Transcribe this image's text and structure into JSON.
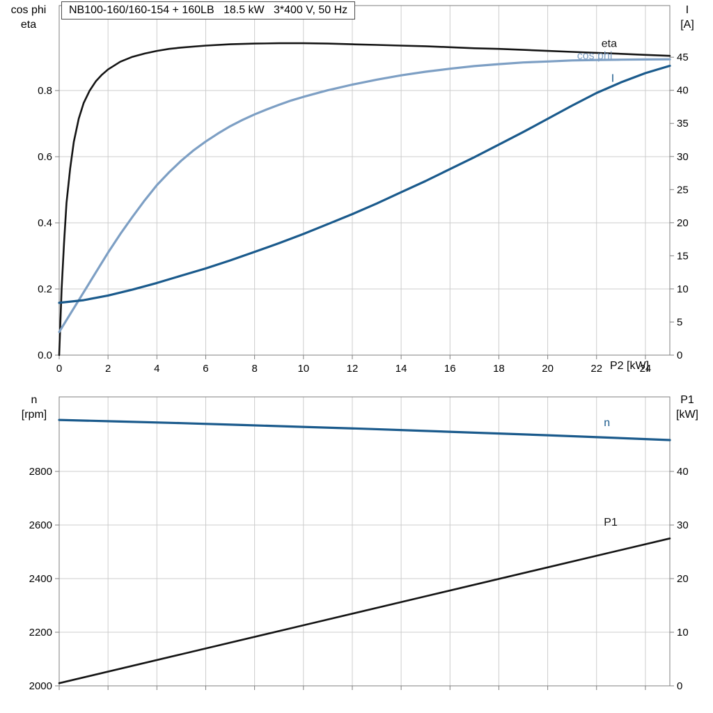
{
  "style": {
    "black": "#141414",
    "dark_blue": "#1a5a8c",
    "light_blue": "#7d9fc4",
    "grid": "#cccccc",
    "frame": "#7f7f7f",
    "text": "#000000"
  },
  "chart_data": [
    {
      "type": "line",
      "title": "NB100-160/160-154 + 160LB   18.5 kW   3*400 V, 50 Hz",
      "x": {
        "label": "P2 [kW]",
        "range": [
          0,
          25
        ],
        "ticks": [
          0,
          2,
          4,
          6,
          8,
          10,
          12,
          14,
          16,
          18,
          20,
          22,
          24
        ],
        "show_tick_labels": true
      },
      "left_axis": {
        "label": [
          "cos phi",
          "eta"
        ],
        "range": [
          0,
          1.057
        ],
        "ticks": [
          [
            "0.0",
            0
          ],
          [
            "0.2",
            0.2
          ],
          [
            "0.4",
            0.4
          ],
          [
            "0.6",
            0.6
          ],
          [
            "0.8",
            0.8
          ]
        ]
      },
      "right_axis": {
        "label": [
          "I",
          "[A]"
        ],
        "range": [
          0,
          52.8
        ],
        "ticks": [
          [
            "0",
            0
          ],
          [
            "5",
            5
          ],
          [
            "10",
            10
          ],
          [
            "15",
            15
          ],
          [
            "20",
            20
          ],
          [
            "25",
            25
          ],
          [
            "30",
            30
          ],
          [
            "35",
            35
          ],
          [
            "40",
            40
          ],
          [
            "45",
            45
          ]
        ]
      },
      "series": [
        {
          "name": "eta",
          "axis": "left",
          "color": "#141414",
          "width": 2.6,
          "label_pos": [
            22.2,
            0.932
          ],
          "points": [
            [
              0,
              0
            ],
            [
              0.1,
              0.2
            ],
            [
              0.2,
              0.34
            ],
            [
              0.3,
              0.46
            ],
            [
              0.45,
              0.565
            ],
            [
              0.6,
              0.645
            ],
            [
              0.8,
              0.715
            ],
            [
              1,
              0.762
            ],
            [
              1.25,
              0.8
            ],
            [
              1.5,
              0.828
            ],
            [
              1.75,
              0.848
            ],
            [
              2,
              0.864
            ],
            [
              2.5,
              0.887
            ],
            [
              3,
              0.902
            ],
            [
              3.5,
              0.912
            ],
            [
              4,
              0.92
            ],
            [
              4.5,
              0.926
            ],
            [
              5,
              0.93
            ],
            [
              6,
              0.936
            ],
            [
              7,
              0.94
            ],
            [
              8,
              0.942
            ],
            [
              9,
              0.943
            ],
            [
              10,
              0.943
            ],
            [
              11,
              0.942
            ],
            [
              12,
              0.94
            ],
            [
              13,
              0.938
            ],
            [
              14,
              0.936
            ],
            [
              15,
              0.934
            ],
            [
              16,
              0.931
            ],
            [
              17,
              0.928
            ],
            [
              18,
              0.926
            ],
            [
              19,
              0.923
            ],
            [
              20,
              0.92
            ],
            [
              21,
              0.917
            ],
            [
              22,
              0.914
            ],
            [
              23,
              0.911
            ],
            [
              24,
              0.908
            ],
            [
              25,
              0.905
            ]
          ]
        },
        {
          "name": "cos phi",
          "axis": "left",
          "color": "#7d9fc4",
          "width": 3.2,
          "label_pos": [
            21.2,
            0.895
          ],
          "points": [
            [
              0,
              0.07
            ],
            [
              0.5,
              0.13
            ],
            [
              1,
              0.19
            ],
            [
              1.5,
              0.25
            ],
            [
              2,
              0.31
            ],
            [
              2.5,
              0.366
            ],
            [
              3,
              0.418
            ],
            [
              3.5,
              0.468
            ],
            [
              4,
              0.514
            ],
            [
              4.5,
              0.553
            ],
            [
              5,
              0.588
            ],
            [
              5.5,
              0.619
            ],
            [
              6,
              0.646
            ],
            [
              6.5,
              0.67
            ],
            [
              7,
              0.692
            ],
            [
              7.5,
              0.711
            ],
            [
              8,
              0.728
            ],
            [
              8.5,
              0.743
            ],
            [
              9,
              0.757
            ],
            [
              9.5,
              0.77
            ],
            [
              10,
              0.781
            ],
            [
              11,
              0.801
            ],
            [
              12,
              0.818
            ],
            [
              13,
              0.833
            ],
            [
              14,
              0.846
            ],
            [
              15,
              0.857
            ],
            [
              16,
              0.866
            ],
            [
              17,
              0.874
            ],
            [
              18,
              0.88
            ],
            [
              19,
              0.885
            ],
            [
              20,
              0.888
            ],
            [
              21,
              0.891
            ],
            [
              22,
              0.8925
            ],
            [
              23,
              0.8935
            ],
            [
              24,
              0.894
            ],
            [
              25,
              0.8945
            ]
          ]
        },
        {
          "name": "I",
          "axis": "right",
          "color": "#1a5a8c",
          "width": 3.2,
          "label_pos": [
            22.6,
            41.3
          ],
          "points": [
            [
              0,
              7.9
            ],
            [
              1,
              8.3
            ],
            [
              2,
              9.0
            ],
            [
              3,
              9.9
            ],
            [
              4,
              10.9
            ],
            [
              5,
              12.0
            ],
            [
              6,
              13.1
            ],
            [
              7,
              14.3
            ],
            [
              8,
              15.6
            ],
            [
              9,
              16.9
            ],
            [
              10,
              18.3
            ],
            [
              11,
              19.8
            ],
            [
              12,
              21.3
            ],
            [
              13,
              22.9
            ],
            [
              14,
              24.6
            ],
            [
              15,
              26.3
            ],
            [
              16,
              28.1
            ],
            [
              17,
              29.9
            ],
            [
              18,
              31.8
            ],
            [
              19,
              33.7
            ],
            [
              20,
              35.7
            ],
            [
              21,
              37.7
            ],
            [
              22,
              39.6
            ],
            [
              23,
              41.2
            ],
            [
              24,
              42.6
            ],
            [
              25,
              43.7
            ]
          ]
        }
      ]
    },
    {
      "type": "line",
      "title": "",
      "x": {
        "label": "",
        "range": [
          0,
          25
        ],
        "ticks": [
          0,
          2,
          4,
          6,
          8,
          10,
          12,
          14,
          16,
          18,
          20,
          22,
          24
        ],
        "show_tick_labels": false
      },
      "left_axis": {
        "label": [
          "n",
          "[rpm]"
        ],
        "range": [
          2000,
          3078
        ],
        "ticks": [
          [
            "2000",
            2000
          ],
          [
            "2200",
            2200
          ],
          [
            "2400",
            2400
          ],
          [
            "2600",
            2600
          ],
          [
            "2800",
            2800
          ]
        ]
      },
      "right_axis": {
        "label": [
          "P1",
          "[kW]"
        ],
        "range": [
          0,
          53.9
        ],
        "ticks": [
          [
            "0",
            0
          ],
          [
            "10",
            10
          ],
          [
            "20",
            20
          ],
          [
            "30",
            30
          ],
          [
            "40",
            40
          ]
        ]
      },
      "series": [
        {
          "name": "n",
          "axis": "left",
          "color": "#1a5a8c",
          "width": 3.2,
          "label_pos": [
            22.3,
            2969
          ],
          "points": [
            [
              0,
              2992
            ],
            [
              2.5,
              2986
            ],
            [
              5,
              2980
            ],
            [
              7.5,
              2973
            ],
            [
              10,
              2966
            ],
            [
              12.5,
              2959
            ],
            [
              15,
              2951
            ],
            [
              17.5,
              2943
            ],
            [
              20,
              2935
            ],
            [
              22.5,
              2926
            ],
            [
              25,
              2917
            ]
          ]
        },
        {
          "name": "P1",
          "axis": "left_kw",
          "color": "#141414",
          "width": 2.6,
          "label_pos": [
            22.3,
            29.9
          ],
          "points": [
            [
              0,
              0.5
            ],
            [
              5,
              5.9
            ],
            [
              10,
              11.3
            ],
            [
              15,
              16.7
            ],
            [
              20,
              22.1
            ],
            [
              25,
              27.5
            ]
          ]
        }
      ]
    }
  ]
}
